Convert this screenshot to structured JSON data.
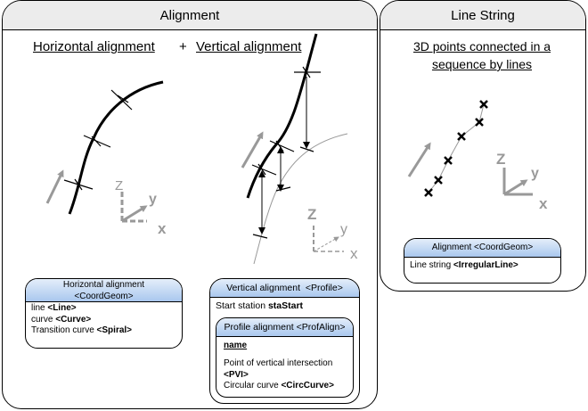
{
  "alignment_panel": {
    "title": "Alignment",
    "horizontal_heading": "Horizontal alignment",
    "plus": "+",
    "vertical_heading": "Vertical alignment",
    "axes": {
      "z": "Z",
      "y": "y",
      "x": "x"
    },
    "horizontal_box": {
      "title_line1": "Horizontal alignment",
      "title_line2": "<CoordGeom>",
      "rows": [
        {
          "text": "line ",
          "bold": "<Line>"
        },
        {
          "text": "curve ",
          "bold": "<Curve>"
        },
        {
          "text": "Transition curve ",
          "bold": "<Spiral>"
        }
      ]
    },
    "vertical_box": {
      "title": "Vertical alignment  <Profile>",
      "start_text": "Start station ",
      "start_bold": "staStart",
      "inner": {
        "title": "Profile alignment <ProfAlign>",
        "name": "name",
        "pvi_text": "Point of vertical intersection",
        "pvi_bold": "<PVI>",
        "circ_text": "Circular curve ",
        "circ_bold": "<CircCurve>"
      }
    }
  },
  "linestring_panel": {
    "title": "Line String",
    "heading_line1": "3D points connected in a",
    "heading_line2": "sequence by lines",
    "axes": {
      "z": "Z",
      "y": "y",
      "x": "x"
    },
    "box": {
      "title": "Alignment <CoordGeom>",
      "row_text": "Line string ",
      "row_bold": "<IrregularLine>"
    }
  }
}
